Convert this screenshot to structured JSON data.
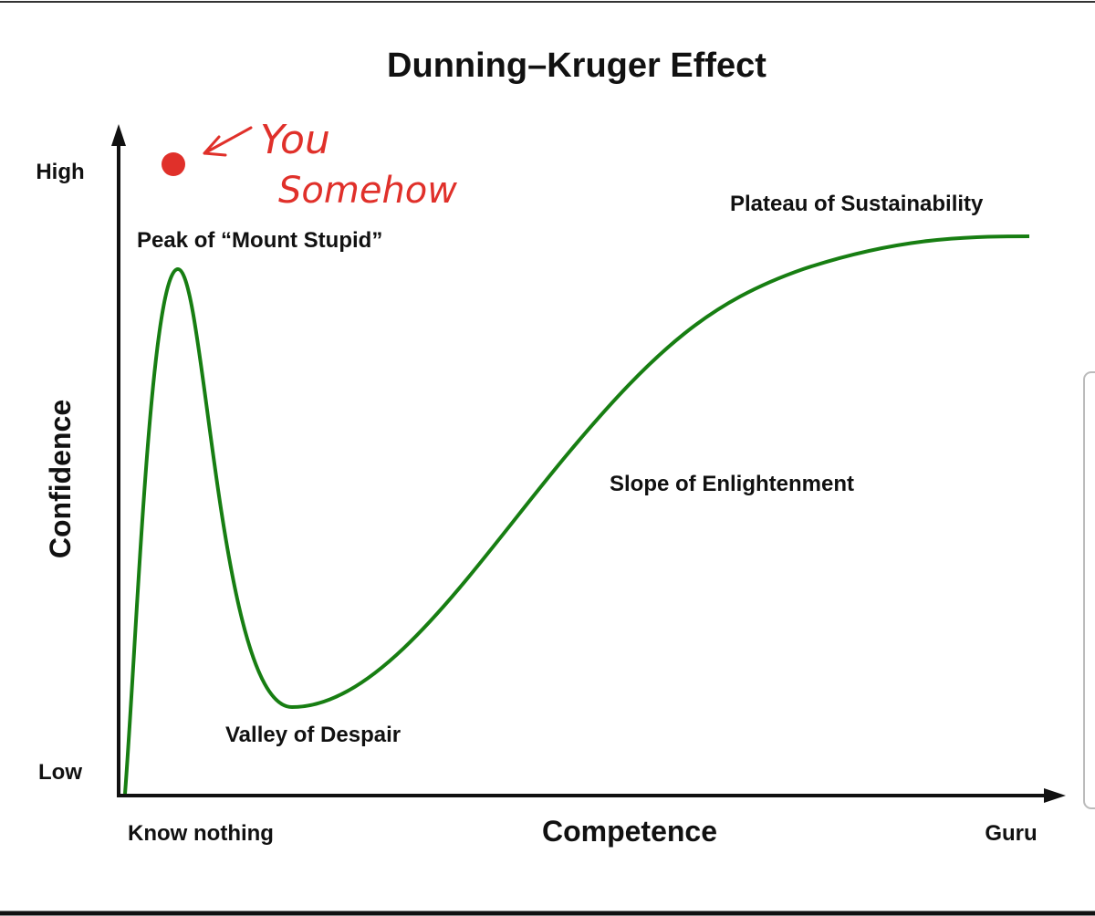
{
  "title": "Dunning–Kruger Effect",
  "y_axis": {
    "label": "Confidence",
    "high": "High",
    "low": "Low"
  },
  "x_axis": {
    "label": "Competence",
    "start": "Know nothing",
    "end": "Guru"
  },
  "annotations": [
    "Peak of “Mount Stupid”",
    "Valley of Despair",
    "Slope of Enlightenment",
    "Plateau of Sustainability"
  ],
  "note": {
    "lines": [
      "You",
      "Somehow"
    ]
  }
}
